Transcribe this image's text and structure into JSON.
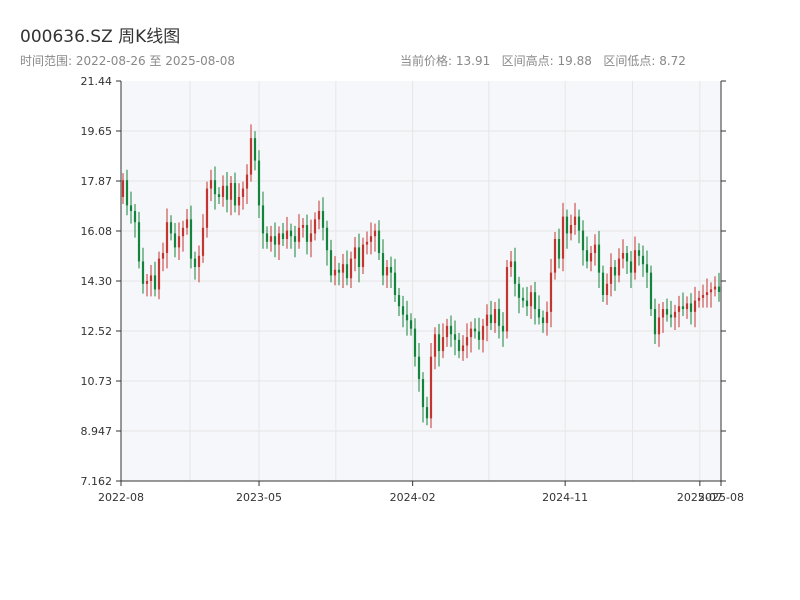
{
  "header": {
    "title": "000636.SZ 周K线图",
    "range_label": "时间范围: 2022-08-26 至 2025-08-08",
    "stats": {
      "current_price_label": "当前价格: 13.91",
      "range_high_label": "区间高点: 19.88",
      "range_low_label": "区间低点: 8.72"
    }
  },
  "chart_data": {
    "type": "candlestick",
    "title": "000636.SZ 周K线图",
    "xlabel": "",
    "ylabel": "",
    "ylim": [
      7.162,
      21.44
    ],
    "y_ticks": [
      "21.44",
      "19.65",
      "17.87",
      "16.08",
      "14.30",
      "12.52",
      "10.73",
      "8.947",
      "7.162"
    ],
    "x_ticks": [
      {
        "label": "2022-08",
        "date": "2022-08-26"
      },
      {
        "label": "2023-05",
        "date": "2023-05-01"
      },
      {
        "label": "2024-02",
        "date": "2024-02-01"
      },
      {
        "label": "2024-11",
        "date": "2024-11-01"
      },
      {
        "label": "2025-07",
        "date": "2025-07-01"
      },
      {
        "label": "2025-08",
        "date": "2025-08-08"
      }
    ],
    "x_range": [
      "2022-08-26",
      "2025-08-08"
    ],
    "grid": true,
    "colors": {
      "up": "#c23531",
      "down": "#14833b",
      "grid": "#e6e6e6",
      "plot_bg": "#f6f7fa",
      "axis": "#333333"
    },
    "weekly_close": [
      17.9,
      17.0,
      16.8,
      16.4,
      15.0,
      14.2,
      14.3,
      14.5,
      14.0,
      15.1,
      15.3,
      16.4,
      16.0,
      15.5,
      15.9,
      16.2,
      16.5,
      15.1,
      14.8,
      15.2,
      16.2,
      17.6,
      17.9,
      17.4,
      17.3,
      17.7,
      17.2,
      17.8,
      17.0,
      17.3,
      17.6,
      18.1,
      19.4,
      18.6,
      17.0,
      16.0,
      15.7,
      15.9,
      15.6,
      16.0,
      15.8,
      16.1,
      15.9,
      15.7,
      16.2,
      16.3,
      15.7,
      16.0,
      16.5,
      16.8,
      16.2,
      15.4,
      14.5,
      14.7,
      14.6,
      14.9,
      14.4,
      15.1,
      15.5,
      14.8,
      15.6,
      15.7,
      15.9,
      16.1,
      15.3,
      14.5,
      14.8,
      14.6,
      13.8,
      13.4,
      13.1,
      12.9,
      12.6,
      11.6,
      10.8,
      9.8,
      9.4,
      11.6,
      12.4,
      11.8,
      12.3,
      12.7,
      12.4,
      12.2,
      11.8,
      12.0,
      12.3,
      12.6,
      12.5,
      12.2,
      12.7,
      13.1,
      12.8,
      13.3,
      12.7,
      12.5,
      14.8,
      15.0,
      14.2,
      13.7,
      13.6,
      13.4,
      13.9,
      13.3,
      13.0,
      12.8,
      13.2,
      14.6,
      15.8,
      15.1,
      16.6,
      16.0,
      16.3,
      16.6,
      16.1,
      15.4,
      15.0,
      15.3,
      15.6,
      14.6,
      13.8,
      14.2,
      14.8,
      14.5,
      15.1,
      15.3,
      15.0,
      14.6,
      15.4,
      15.2,
      14.9,
      14.6,
      13.3,
      12.4,
      13.0,
      13.3,
      13.1,
      13.0,
      13.2,
      13.4,
      13.3,
      13.5,
      13.2,
      13.6,
      13.7,
      13.8,
      13.9,
      14.0,
      14.1,
      13.91
    ]
  }
}
